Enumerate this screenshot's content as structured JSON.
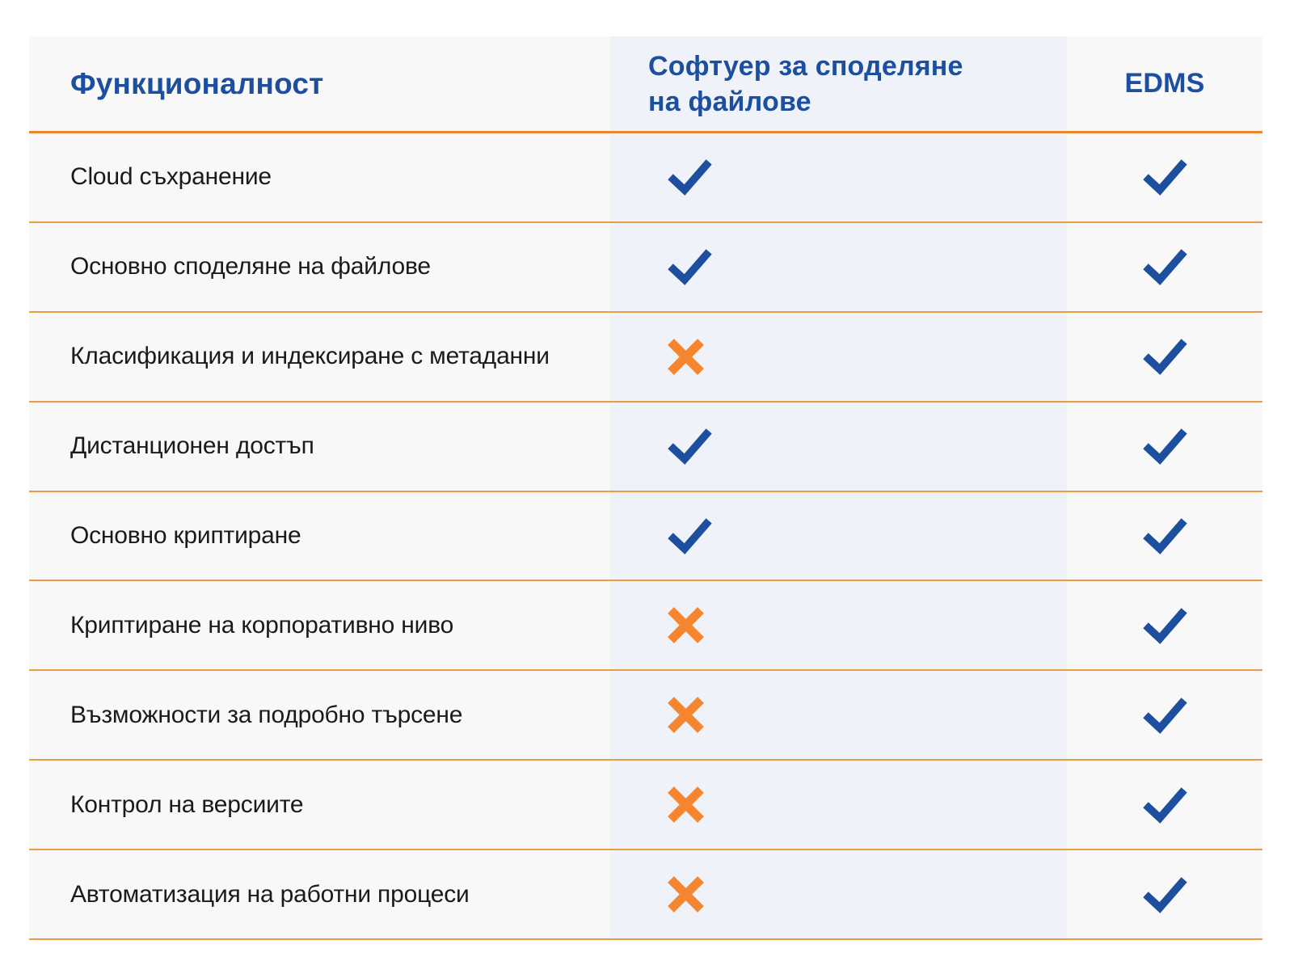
{
  "table": {
    "header": {
      "feature": "Функционалност",
      "file_sharing": "Софтуер за споделяне на файлове",
      "edms": "EDMS"
    },
    "rows": [
      {
        "feature": "Cloud съхранение",
        "file_sharing": true,
        "edms": true
      },
      {
        "feature": "Основно споделяне на файлове",
        "file_sharing": true,
        "edms": true
      },
      {
        "feature": "Класификация и индексиране с метаданни",
        "file_sharing": false,
        "edms": true
      },
      {
        "feature": "Дистанционен достъп",
        "file_sharing": true,
        "edms": true
      },
      {
        "feature": "Основно криптиране",
        "file_sharing": true,
        "edms": true
      },
      {
        "feature": "Криптиране на корпоративно ниво",
        "file_sharing": false,
        "edms": true
      },
      {
        "feature": "Възможности за подробно търсене",
        "file_sharing": false,
        "edms": true
      },
      {
        "feature": "Контрол на версиите",
        "file_sharing": false,
        "edms": true
      },
      {
        "feature": "Автоматизация на работни процеси",
        "file_sharing": false,
        "edms": true
      }
    ],
    "marks": {
      "supported": "check-icon",
      "not_supported": "cross-icon"
    },
    "colors": {
      "header_text": "#1d4fa0",
      "check": "#1d4f9e",
      "cross": "#f5862f",
      "header_rule": "#e8872b",
      "row_rule": "#ec9a43",
      "outer_column_bg": "#f8f8f9",
      "middle_column_bg": "#eff2f8",
      "body_text": "#1a1a1a",
      "page_bg": "#ffffff"
    }
  },
  "chart_data": {
    "type": "table",
    "title": "",
    "columns": [
      "Функционалност",
      "Софтуер за споделяне на файлове",
      "EDMS"
    ],
    "rows": [
      [
        "Cloud съхранение",
        "✓",
        "✓"
      ],
      [
        "Основно споделяне на файлове",
        "✓",
        "✓"
      ],
      [
        "Класификация и индексиране с метаданни",
        "✗",
        "✓"
      ],
      [
        "Дистанционен достъп",
        "✓",
        "✓"
      ],
      [
        "Основно криптиране",
        "✓",
        "✓"
      ],
      [
        "Криптиране на корпоративно ниво",
        "✗",
        "✓"
      ],
      [
        "Възможности за подробно търсене",
        "✗",
        "✓"
      ],
      [
        "Контрол на версиите",
        "✗",
        "✓"
      ],
      [
        "Автоматизация на работни процеси",
        "✗",
        "✓"
      ]
    ]
  }
}
